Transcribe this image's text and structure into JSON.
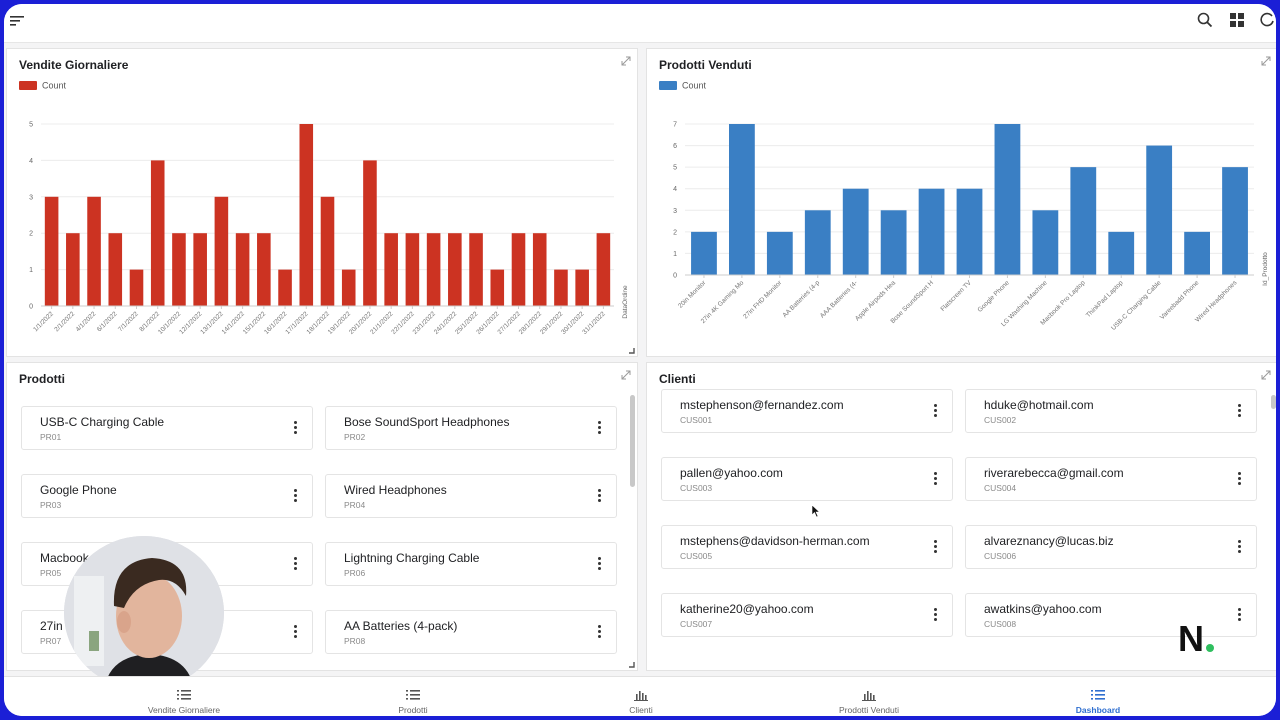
{
  "colors": {
    "red": "#cc3322",
    "blue": "#3a7fc4",
    "active": "#2f6fd0"
  },
  "topbar": {
    "icons": [
      "menu-icon",
      "search-icon",
      "grid-icon",
      "refresh-icon"
    ]
  },
  "vendite": {
    "title": "Vendite Giornaliere",
    "legend": "Count",
    "xlabel": "DataOrdine"
  },
  "prodottiVenduti": {
    "title": "Prodotti Venduti",
    "legend": "Count",
    "ylabel": "Id_Prodotto"
  },
  "prodotti": {
    "title": "Prodotti",
    "items": [
      {
        "name": "USB-C Charging Cable",
        "id": "PR01"
      },
      {
        "name": "Bose SoundSport Headphones",
        "id": "PR02"
      },
      {
        "name": "Google Phone",
        "id": "PR03"
      },
      {
        "name": "Wired Headphones",
        "id": "PR04"
      },
      {
        "name": "Macbook",
        "id": "PR05"
      },
      {
        "name": "Lightning Charging Cable",
        "id": "PR06"
      },
      {
        "name": "27in",
        "id": "PR07"
      },
      {
        "name": "AA Batteries (4-pack)",
        "id": "PR08"
      }
    ]
  },
  "clienti": {
    "title": "Clienti",
    "items": [
      {
        "email": "mstephenson@fernandez.com",
        "id": "CUS001"
      },
      {
        "email": "hduke@hotmail.com",
        "id": "CUS002"
      },
      {
        "email": "pallen@yahoo.com",
        "id": "CUS003"
      },
      {
        "email": "riverarebecca@gmail.com",
        "id": "CUS004"
      },
      {
        "email": "mstephens@davidson-herman.com",
        "id": "CUS005"
      },
      {
        "email": "alvareznancy@lucas.biz",
        "id": "CUS006"
      },
      {
        "email": "katherine20@yahoo.com",
        "id": "CUS007"
      },
      {
        "email": "awatkins@yahoo.com",
        "id": "CUS008"
      }
    ]
  },
  "nav": {
    "items": [
      {
        "label": "Vendite Giornaliere",
        "icon": "list-icon"
      },
      {
        "label": "Prodotti",
        "icon": "list-icon"
      },
      {
        "label": "Clienti",
        "icon": "bar-chart-icon"
      },
      {
        "label": "Prodotti Venduti",
        "icon": "bar-chart-icon"
      },
      {
        "label": "Dashboard",
        "icon": "list-icon",
        "active": true
      }
    ]
  },
  "logo": {
    "letter": "N",
    "dot_color": "#2fbf5f"
  },
  "chart_data": [
    {
      "type": "bar",
      "title": "Vendite Giornaliere",
      "series": [
        {
          "name": "Count",
          "values": [
            3,
            2,
            3,
            2,
            1,
            4,
            2,
            2,
            3,
            2,
            2,
            1,
            5,
            3,
            1,
            4,
            2,
            2,
            2,
            2,
            2,
            1,
            2,
            2,
            1,
            1,
            2
          ]
        }
      ],
      "categories": [
        "1/1/2022",
        "2/1/2022",
        "4/1/2022",
        "6/1/2022",
        "7/1/2022",
        "8/1/2022",
        "10/1/2022",
        "12/1/2022",
        "13/1/2022",
        "14/1/2022",
        "15/1/2022",
        "16/1/2022",
        "17/1/2022",
        "18/1/2022",
        "19/1/2022",
        "20/1/2022",
        "21/1/2022",
        "22/1/2022",
        "23/1/2022",
        "24/1/2022",
        "25/1/2022",
        "26/1/2022",
        "27/1/2022",
        "28/1/2022",
        "29/1/2022",
        "30/1/2022",
        "31/1/2022"
      ],
      "xlabel": "DataOrdine",
      "ylabel": "",
      "ylim": [
        0,
        5
      ],
      "yticks": [
        0,
        1,
        2,
        3,
        4,
        5
      ],
      "grid": true,
      "legend": "top-left"
    },
    {
      "type": "bar",
      "title": "Prodotti Venduti",
      "series": [
        {
          "name": "Count",
          "values": [
            2,
            7,
            2,
            3,
            4,
            3,
            4,
            4,
            7,
            3,
            5,
            2,
            6,
            2,
            5
          ]
        }
      ],
      "categories": [
        "20in Monitor",
        "27in 4K Gaming Mo",
        "27in FHD Monitor",
        "AA Batteries (4-p",
        "AAA Batteries (4-",
        "Apple Airpods Hea",
        "Bose SoundSport H",
        "Flatscreen TV",
        "Google Phone",
        "LG Washing Machine",
        "Macbook Pro Laptop",
        "ThinkPad Laptop",
        "USB-C Charging Cable",
        "Vareebadd Phone",
        "Wired Headphones"
      ],
      "xlabel": "",
      "ylabel": "Id_Prodotto",
      "ylim": [
        0,
        7
      ],
      "yticks": [
        0,
        1,
        2,
        3,
        4,
        5,
        6,
        7
      ],
      "grid": true,
      "legend": "top-left"
    }
  ]
}
